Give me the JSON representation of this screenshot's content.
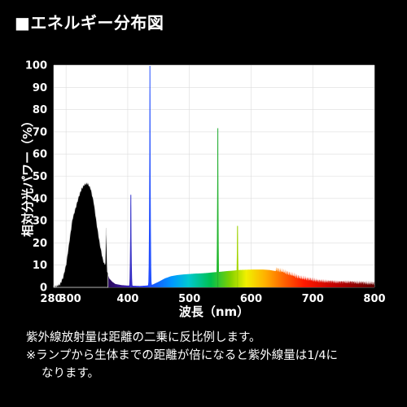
{
  "header": {
    "title": "■エネルギー分布図"
  },
  "chart_data": {
    "type": "area",
    "xlabel": "波長（nm）",
    "ylabel": "相対分光パワー（%）",
    "xlim": [
      280,
      800
    ],
    "ylim": [
      0,
      100
    ],
    "x_ticks": [
      280,
      300,
      400,
      500,
      600,
      700,
      800
    ],
    "y_ticks": [
      0,
      10,
      20,
      30,
      40,
      50,
      60,
      70,
      80,
      90,
      100
    ],
    "grid": true,
    "baseline": [
      [
        280,
        0
      ],
      [
        285,
        0.2
      ],
      [
        290,
        1
      ],
      [
        295,
        4
      ],
      [
        300,
        10
      ],
      [
        305,
        20
      ],
      [
        310,
        30
      ],
      [
        315,
        35
      ],
      [
        320,
        40
      ],
      [
        325,
        44
      ],
      [
        330,
        46
      ],
      [
        335,
        46.5
      ],
      [
        340,
        44
      ],
      [
        345,
        38
      ],
      [
        350,
        28
      ],
      [
        355,
        19
      ],
      [
        360,
        12
      ],
      [
        365,
        8
      ],
      [
        370,
        4
      ],
      [
        375,
        2.5
      ],
      [
        380,
        1.5
      ],
      [
        390,
        1
      ],
      [
        400,
        0.8
      ],
      [
        410,
        0.7
      ],
      [
        420,
        0.6
      ],
      [
        430,
        0.8
      ],
      [
        440,
        1.2
      ],
      [
        450,
        2.5
      ],
      [
        460,
        4
      ],
      [
        470,
        5
      ],
      [
        480,
        5.5
      ],
      [
        490,
        5.8
      ],
      [
        500,
        6
      ],
      [
        510,
        6.2
      ],
      [
        520,
        6.3
      ],
      [
        530,
        6.5
      ],
      [
        540,
        6.8
      ],
      [
        550,
        7
      ],
      [
        560,
        7.3
      ],
      [
        570,
        7.5
      ],
      [
        580,
        7.8
      ],
      [
        590,
        7.9
      ],
      [
        600,
        8
      ],
      [
        610,
        8
      ],
      [
        620,
        8
      ],
      [
        630,
        7.8
      ],
      [
        640,
        7.3
      ],
      [
        650,
        6.5
      ],
      [
        660,
        5.5
      ],
      [
        670,
        4.5
      ],
      [
        680,
        3.5
      ],
      [
        690,
        3
      ],
      [
        700,
        2.5
      ],
      [
        710,
        2
      ],
      [
        720,
        1.8
      ],
      [
        730,
        1.7
      ],
      [
        740,
        1.5
      ],
      [
        750,
        1.5
      ],
      [
        760,
        1.5
      ],
      [
        770,
        1.3
      ],
      [
        780,
        1.2
      ],
      [
        790,
        1
      ],
      [
        800,
        0.8
      ]
    ],
    "peaks": [
      {
        "x": 365,
        "y": 26
      },
      {
        "x": 405,
        "y": 42
      },
      {
        "x": 436,
        "y": 100
      },
      {
        "x": 546,
        "y": 72
      },
      {
        "x": 578,
        "y": 28
      }
    ],
    "colors": {
      "uv_fill": "#000000",
      "uv_edge": "#dddddd",
      "grid_fill": "#ffffff",
      "grid_line": "#dcdcdc",
      "background": "#000000"
    }
  },
  "notes": {
    "line1": "紫外線放射量は距離の二乗に反比例します。",
    "line2": "※ランプから生体までの距離が倍になると紫外線量は1/4に",
    "line3": "なります。"
  }
}
